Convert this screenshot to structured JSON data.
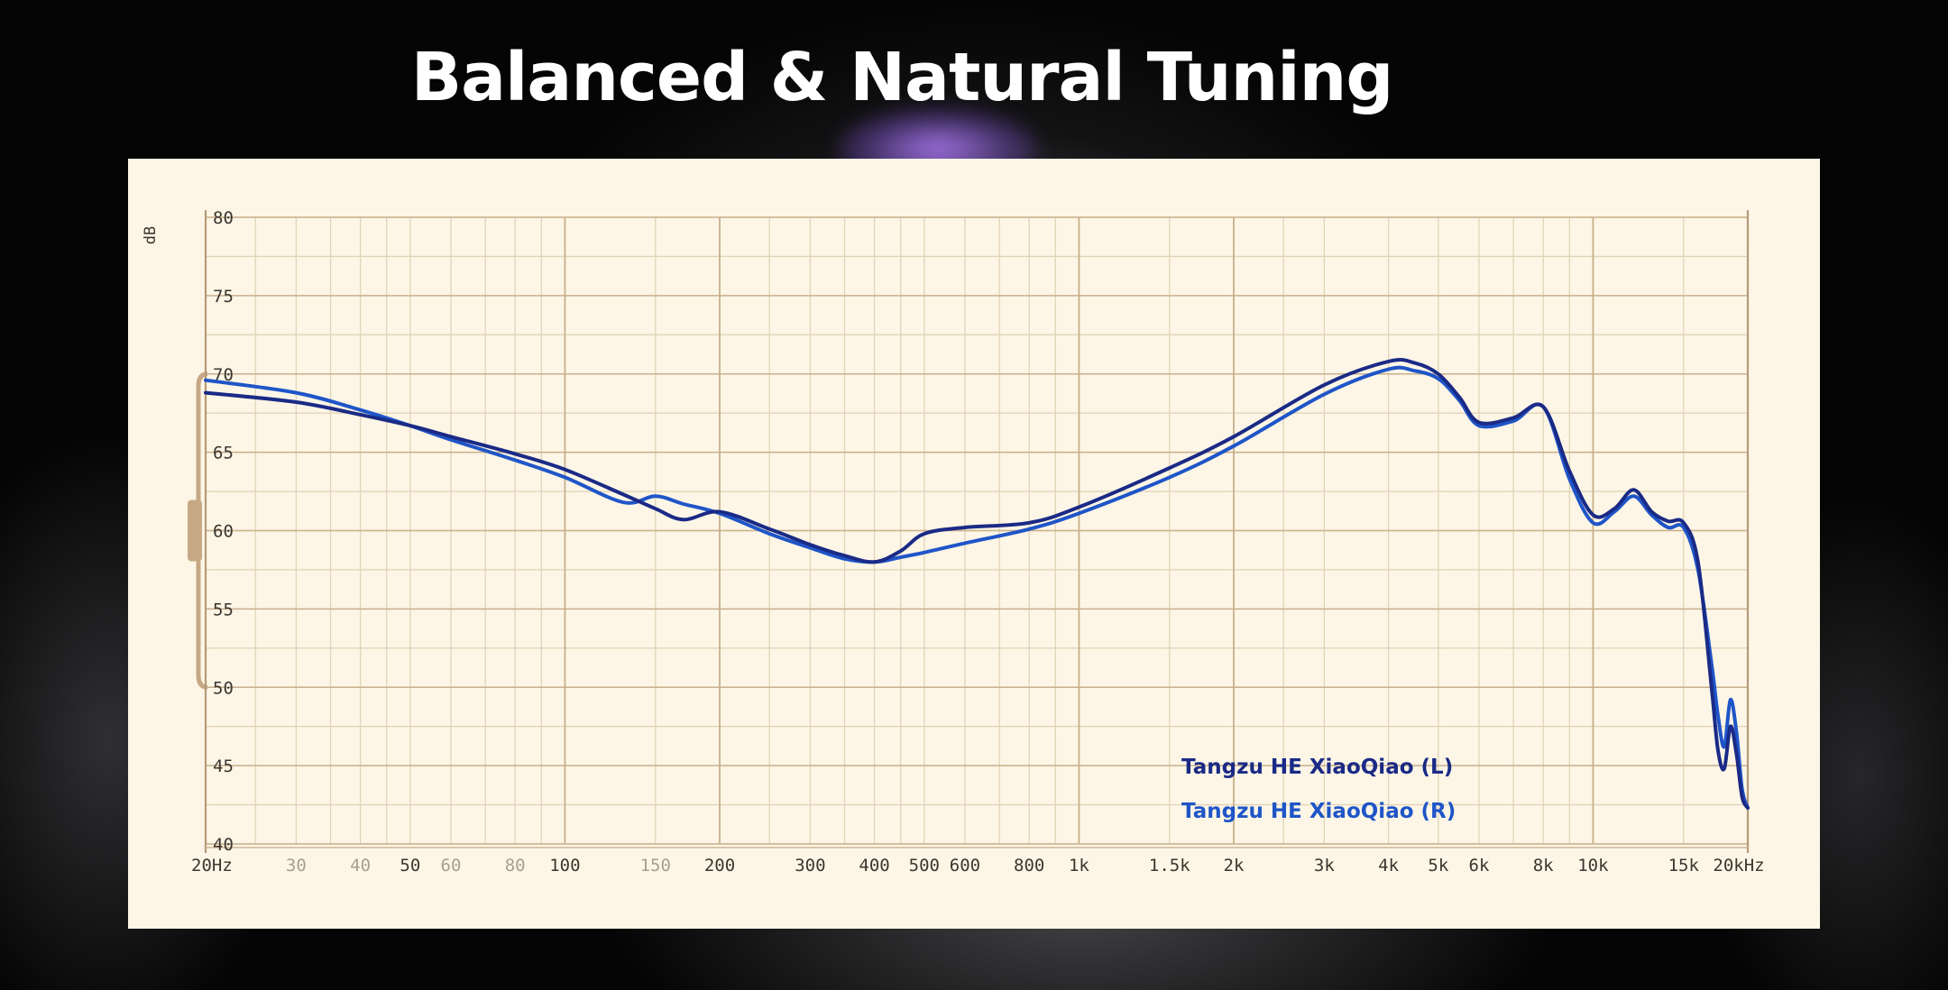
{
  "title": "Balanced & Natural Tuning",
  "colors": {
    "grid_major": "#c8b08c",
    "grid_minor": "#e2d3b8",
    "panel_bg": "#fdf6e6",
    "series_left": "#1a2a86",
    "series_right": "#1f55c8",
    "bracket": "#c6a885"
  },
  "chart_data": {
    "type": "line",
    "title": "",
    "xlabel": "",
    "ylabel": "dB",
    "x_scale": "log",
    "xlim": [
      20,
      20000
    ],
    "ylim": [
      40,
      80
    ],
    "grid": true,
    "legend_position": "bottom-right",
    "y_ticks": [
      80,
      75,
      70,
      65,
      60,
      55,
      50,
      45,
      40
    ],
    "x_ticks": [
      {
        "value": 20,
        "label": "20Hz",
        "major": true
      },
      {
        "value": 30,
        "label": "30",
        "major": false
      },
      {
        "value": 40,
        "label": "40",
        "major": false
      },
      {
        "value": 50,
        "label": "50",
        "major": true
      },
      {
        "value": 60,
        "label": "60",
        "major": false
      },
      {
        "value": 80,
        "label": "80",
        "major": false
      },
      {
        "value": 100,
        "label": "100",
        "major": true
      },
      {
        "value": 150,
        "label": "150",
        "major": false
      },
      {
        "value": 200,
        "label": "200",
        "major": true
      },
      {
        "value": 300,
        "label": "300",
        "major": true
      },
      {
        "value": 400,
        "label": "400",
        "major": true
      },
      {
        "value": 500,
        "label": "500",
        "major": true
      },
      {
        "value": 600,
        "label": "600",
        "major": true
      },
      {
        "value": 800,
        "label": "800",
        "major": true
      },
      {
        "value": 1000,
        "label": "1k",
        "major": true
      },
      {
        "value": 1500,
        "label": "1.5k",
        "major": true
      },
      {
        "value": 2000,
        "label": "2k",
        "major": true
      },
      {
        "value": 3000,
        "label": "3k",
        "major": true
      },
      {
        "value": 4000,
        "label": "4k",
        "major": true
      },
      {
        "value": 5000,
        "label": "5k",
        "major": true
      },
      {
        "value": 6000,
        "label": "6k",
        "major": true
      },
      {
        "value": 8000,
        "label": "8k",
        "major": true
      },
      {
        "value": 10000,
        "label": "10k",
        "major": true
      },
      {
        "value": 15000,
        "label": "15k",
        "major": true
      },
      {
        "value": 20000,
        "label": "20kHz",
        "major": true
      }
    ],
    "series": [
      {
        "name": "Tangzu HE XiaoQiao (L)",
        "x": [
          20,
          30,
          40,
          50,
          60,
          80,
          100,
          130,
          150,
          170,
          200,
          250,
          300,
          350,
          400,
          450,
          500,
          600,
          800,
          1000,
          1500,
          2000,
          3000,
          4000,
          4500,
          5000,
          5500,
          6000,
          7000,
          8000,
          9000,
          10000,
          11000,
          12000,
          13000,
          14000,
          15000,
          16000,
          17000,
          17500,
          18000,
          18500,
          19000,
          19500,
          20000
        ],
        "values": [
          68.8,
          68.2,
          67.4,
          66.7,
          66.0,
          64.9,
          63.9,
          62.3,
          61.4,
          60.7,
          61.2,
          60.1,
          59.1,
          58.4,
          58.0,
          58.7,
          59.8,
          60.2,
          60.5,
          61.5,
          64.0,
          66.0,
          69.3,
          70.8,
          70.7,
          70.0,
          68.5,
          66.9,
          67.2,
          67.9,
          63.8,
          61.0,
          61.4,
          62.6,
          61.2,
          60.6,
          60.5,
          58.0,
          50.0,
          46.0,
          44.8,
          47.5,
          45.8,
          43.0,
          42.3
        ]
      },
      {
        "name": "Tangzu HE XiaoQiao (R)",
        "x": [
          20,
          30,
          40,
          50,
          60,
          80,
          100,
          130,
          150,
          170,
          200,
          250,
          300,
          350,
          400,
          450,
          500,
          600,
          800,
          1000,
          1500,
          2000,
          3000,
          4000,
          4500,
          5000,
          5500,
          6000,
          7000,
          8000,
          9000,
          10000,
          11000,
          12000,
          13000,
          14000,
          15000,
          16000,
          17000,
          17500,
          18000,
          18500,
          19000,
          19500,
          20000
        ],
        "values": [
          69.6,
          68.8,
          67.7,
          66.7,
          65.8,
          64.5,
          63.4,
          61.8,
          62.2,
          61.7,
          61.1,
          59.8,
          58.9,
          58.2,
          58.0,
          58.3,
          58.6,
          59.2,
          60.1,
          61.1,
          63.4,
          65.4,
          68.7,
          70.3,
          70.2,
          69.7,
          68.3,
          66.7,
          67.0,
          67.9,
          63.3,
          60.5,
          61.2,
          62.2,
          61.0,
          60.2,
          60.2,
          57.5,
          51.5,
          48.2,
          46.2,
          49.2,
          47.2,
          43.5,
          42.3
        ]
      }
    ]
  }
}
